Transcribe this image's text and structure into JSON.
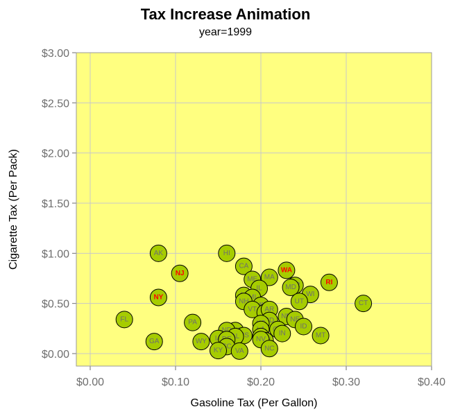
{
  "chart_data": {
    "type": "scatter",
    "title": "Tax Increase Animation",
    "subtitle": "year=1999",
    "xlabel": "Gasoline Tax (Per Gallon)",
    "ylabel": "Cigarette Tax (Per Pack)",
    "xlim": [
      0,
      0.4
    ],
    "ylim": [
      0,
      3.0
    ],
    "x_ticks": [
      0,
      0.1,
      0.2,
      0.3,
      0.4
    ],
    "x_tick_labels": [
      "$0.00",
      "$0.10",
      "$0.20",
      "$0.30",
      "$0.40"
    ],
    "y_ticks": [
      0,
      0.5,
      1.0,
      1.5,
      2.0,
      2.5,
      3.0
    ],
    "y_tick_labels": [
      "$0.00",
      "$0.50",
      "$1.00",
      "$1.50",
      "$2.00",
      "$2.50",
      "$3.00"
    ],
    "grid": true,
    "colors": {
      "plot_background": "#ffff80",
      "marker_fill": "#a6cc00",
      "marker_edge": "#000000",
      "label_normal": "#6e6e6e",
      "label_highlight": "#ff0000",
      "grid": "#c8c8c8"
    },
    "points": [
      {
        "state": "AK",
        "x": 0.08,
        "y": 1.0,
        "highlight": false
      },
      {
        "state": "NJ",
        "x": 0.105,
        "y": 0.8,
        "highlight": true
      },
      {
        "state": "NY",
        "x": 0.08,
        "y": 0.56,
        "highlight": true
      },
      {
        "state": "FL",
        "x": 0.04,
        "y": 0.34,
        "highlight": false
      },
      {
        "state": "GA",
        "x": 0.075,
        "y": 0.12,
        "highlight": false
      },
      {
        "state": "PA",
        "x": 0.12,
        "y": 0.31,
        "highlight": false
      },
      {
        "state": "WY",
        "x": 0.13,
        "y": 0.12,
        "highlight": false
      },
      {
        "state": "HI",
        "x": 0.16,
        "y": 1.0,
        "highlight": false
      },
      {
        "state": "CA",
        "x": 0.18,
        "y": 0.87,
        "highlight": false
      },
      {
        "state": "ME",
        "x": 0.19,
        "y": 0.74,
        "highlight": false
      },
      {
        "state": "MA",
        "x": 0.21,
        "y": 0.76,
        "highlight": false
      },
      {
        "state": "WA",
        "x": 0.23,
        "y": 0.83,
        "highlight": true
      },
      {
        "state": "RI",
        "x": 0.28,
        "y": 0.71,
        "highlight": true
      },
      {
        "state": "OR",
        "x": 0.24,
        "y": 0.68,
        "highlight": false
      },
      {
        "state": "MD",
        "x": 0.235,
        "y": 0.66,
        "highlight": false
      },
      {
        "state": "WI",
        "x": 0.258,
        "y": 0.59,
        "highlight": false
      },
      {
        "state": "UT",
        "x": 0.245,
        "y": 0.52,
        "highlight": false
      },
      {
        "state": "CT",
        "x": 0.32,
        "y": 0.5,
        "highlight": false
      },
      {
        "state": "IL",
        "x": 0.198,
        "y": 0.65,
        "highlight": false
      },
      {
        "state": "AZ",
        "x": 0.18,
        "y": 0.58,
        "highlight": false
      },
      {
        "state": "MI",
        "x": 0.19,
        "y": 0.56,
        "highlight": false
      },
      {
        "state": "NH",
        "x": 0.18,
        "y": 0.52,
        "highlight": false
      },
      {
        "state": "MN",
        "x": 0.2,
        "y": 0.48,
        "highlight": false
      },
      {
        "state": "VT",
        "x": 0.19,
        "y": 0.44,
        "highlight": false
      },
      {
        "state": "TX",
        "x": 0.205,
        "y": 0.41,
        "highlight": false
      },
      {
        "state": "AR",
        "x": 0.21,
        "y": 0.44,
        "highlight": false
      },
      {
        "state": "NM",
        "x": 0.23,
        "y": 0.37,
        "highlight": false
      },
      {
        "state": "NE",
        "x": 0.24,
        "y": 0.34,
        "highlight": false
      },
      {
        "state": "ID",
        "x": 0.25,
        "y": 0.27,
        "highlight": false
      },
      {
        "state": "SD",
        "x": 0.21,
        "y": 0.33,
        "highlight": false
      },
      {
        "state": "KS",
        "x": 0.2,
        "y": 0.3,
        "highlight": false
      },
      {
        "state": "LA",
        "x": 0.2,
        "y": 0.24,
        "highlight": false
      },
      {
        "state": "OH",
        "x": 0.22,
        "y": 0.24,
        "highlight": false
      },
      {
        "state": "IN",
        "x": 0.225,
        "y": 0.2,
        "highlight": false
      },
      {
        "state": "MT",
        "x": 0.27,
        "y": 0.18,
        "highlight": false
      },
      {
        "state": "OK",
        "x": 0.17,
        "y": 0.23,
        "highlight": false
      },
      {
        "state": "ND",
        "x": 0.16,
        "y": 0.23,
        "highlight": false
      },
      {
        "state": "MS",
        "x": 0.18,
        "y": 0.18,
        "highlight": false
      },
      {
        "state": "AL",
        "x": 0.17,
        "y": 0.17,
        "highlight": false
      },
      {
        "state": "IA",
        "x": 0.15,
        "y": 0.15,
        "highlight": false
      },
      {
        "state": "DE",
        "x": 0.16,
        "y": 0.14,
        "highlight": false
      },
      {
        "state": "MO",
        "x": 0.2,
        "y": 0.17,
        "highlight": false
      },
      {
        "state": "WV",
        "x": 0.205,
        "y": 0.13,
        "highlight": false
      },
      {
        "state": "SC",
        "x": 0.16,
        "y": 0.07,
        "highlight": false
      },
      {
        "state": "NV",
        "x": 0.2,
        "y": 0.14,
        "highlight": false
      },
      {
        "state": "KY",
        "x": 0.15,
        "y": 0.03,
        "highlight": false
      },
      {
        "state": "VA",
        "x": 0.175,
        "y": 0.025,
        "highlight": false
      },
      {
        "state": "NC",
        "x": 0.21,
        "y": 0.05,
        "highlight": false
      }
    ]
  }
}
